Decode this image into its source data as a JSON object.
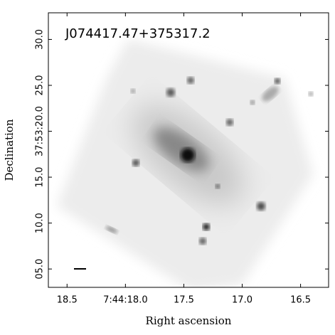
{
  "chart_data": {
    "type": "image",
    "title": "J074417.47+375317.2",
    "x_label": "Right ascension",
    "y_label": "Declination",
    "xlim": [
      18.66,
      16.26
    ],
    "xticks": [
      18.5,
      {
        "value": 18,
        "label": "7:44:18.0"
      },
      17.5,
      {
        "value": 17,
        "label": "17.0"
      },
      16.5
    ],
    "ylim": [
      3.0,
      32.9
    ],
    "yticks": [
      {
        "value": 5,
        "label": "05.0"
      },
      {
        "value": 10,
        "label": "10.0"
      },
      {
        "value": 15,
        "label": "15.0"
      },
      {
        "value": 20,
        "label": "37:53:20.0"
      },
      {
        "value": 25,
        "label": "25.0"
      },
      {
        "value": 30,
        "label": "30.0"
      }
    ]
  }
}
